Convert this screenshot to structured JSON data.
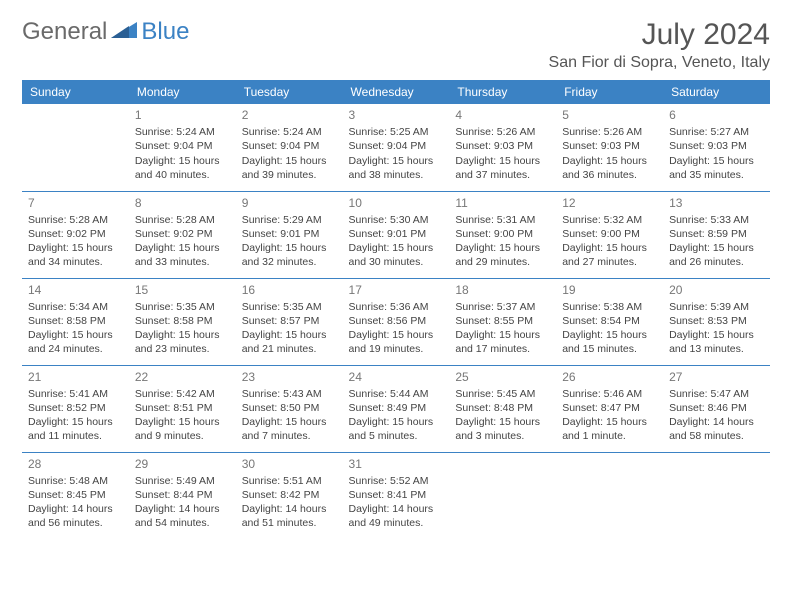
{
  "logo": {
    "part1": "General",
    "part2": "Blue"
  },
  "title": "July 2024",
  "location": "San Fior di Sopra, Veneto, Italy",
  "colors": {
    "header_bg": "#3b82c4",
    "header_text": "#ffffff",
    "border": "#3b82c4",
    "body_text": "#444444",
    "daynum": "#777777",
    "title_color": "#555555",
    "logo_gray": "#6a6a6a",
    "logo_blue": "#3b82c4",
    "page_bg": "#ffffff"
  },
  "weekdays": [
    "Sunday",
    "Monday",
    "Tuesday",
    "Wednesday",
    "Thursday",
    "Friday",
    "Saturday"
  ],
  "weeks": [
    [
      null,
      {
        "n": "1",
        "sr": "Sunrise: 5:24 AM",
        "ss": "Sunset: 9:04 PM",
        "dl": "Daylight: 15 hours and 40 minutes."
      },
      {
        "n": "2",
        "sr": "Sunrise: 5:24 AM",
        "ss": "Sunset: 9:04 PM",
        "dl": "Daylight: 15 hours and 39 minutes."
      },
      {
        "n": "3",
        "sr": "Sunrise: 5:25 AM",
        "ss": "Sunset: 9:04 PM",
        "dl": "Daylight: 15 hours and 38 minutes."
      },
      {
        "n": "4",
        "sr": "Sunrise: 5:26 AM",
        "ss": "Sunset: 9:03 PM",
        "dl": "Daylight: 15 hours and 37 minutes."
      },
      {
        "n": "5",
        "sr": "Sunrise: 5:26 AM",
        "ss": "Sunset: 9:03 PM",
        "dl": "Daylight: 15 hours and 36 minutes."
      },
      {
        "n": "6",
        "sr": "Sunrise: 5:27 AM",
        "ss": "Sunset: 9:03 PM",
        "dl": "Daylight: 15 hours and 35 minutes."
      }
    ],
    [
      {
        "n": "7",
        "sr": "Sunrise: 5:28 AM",
        "ss": "Sunset: 9:02 PM",
        "dl": "Daylight: 15 hours and 34 minutes."
      },
      {
        "n": "8",
        "sr": "Sunrise: 5:28 AM",
        "ss": "Sunset: 9:02 PM",
        "dl": "Daylight: 15 hours and 33 minutes."
      },
      {
        "n": "9",
        "sr": "Sunrise: 5:29 AM",
        "ss": "Sunset: 9:01 PM",
        "dl": "Daylight: 15 hours and 32 minutes."
      },
      {
        "n": "10",
        "sr": "Sunrise: 5:30 AM",
        "ss": "Sunset: 9:01 PM",
        "dl": "Daylight: 15 hours and 30 minutes."
      },
      {
        "n": "11",
        "sr": "Sunrise: 5:31 AM",
        "ss": "Sunset: 9:00 PM",
        "dl": "Daylight: 15 hours and 29 minutes."
      },
      {
        "n": "12",
        "sr": "Sunrise: 5:32 AM",
        "ss": "Sunset: 9:00 PM",
        "dl": "Daylight: 15 hours and 27 minutes."
      },
      {
        "n": "13",
        "sr": "Sunrise: 5:33 AM",
        "ss": "Sunset: 8:59 PM",
        "dl": "Daylight: 15 hours and 26 minutes."
      }
    ],
    [
      {
        "n": "14",
        "sr": "Sunrise: 5:34 AM",
        "ss": "Sunset: 8:58 PM",
        "dl": "Daylight: 15 hours and 24 minutes."
      },
      {
        "n": "15",
        "sr": "Sunrise: 5:35 AM",
        "ss": "Sunset: 8:58 PM",
        "dl": "Daylight: 15 hours and 23 minutes."
      },
      {
        "n": "16",
        "sr": "Sunrise: 5:35 AM",
        "ss": "Sunset: 8:57 PM",
        "dl": "Daylight: 15 hours and 21 minutes."
      },
      {
        "n": "17",
        "sr": "Sunrise: 5:36 AM",
        "ss": "Sunset: 8:56 PM",
        "dl": "Daylight: 15 hours and 19 minutes."
      },
      {
        "n": "18",
        "sr": "Sunrise: 5:37 AM",
        "ss": "Sunset: 8:55 PM",
        "dl": "Daylight: 15 hours and 17 minutes."
      },
      {
        "n": "19",
        "sr": "Sunrise: 5:38 AM",
        "ss": "Sunset: 8:54 PM",
        "dl": "Daylight: 15 hours and 15 minutes."
      },
      {
        "n": "20",
        "sr": "Sunrise: 5:39 AM",
        "ss": "Sunset: 8:53 PM",
        "dl": "Daylight: 15 hours and 13 minutes."
      }
    ],
    [
      {
        "n": "21",
        "sr": "Sunrise: 5:41 AM",
        "ss": "Sunset: 8:52 PM",
        "dl": "Daylight: 15 hours and 11 minutes."
      },
      {
        "n": "22",
        "sr": "Sunrise: 5:42 AM",
        "ss": "Sunset: 8:51 PM",
        "dl": "Daylight: 15 hours and 9 minutes."
      },
      {
        "n": "23",
        "sr": "Sunrise: 5:43 AM",
        "ss": "Sunset: 8:50 PM",
        "dl": "Daylight: 15 hours and 7 minutes."
      },
      {
        "n": "24",
        "sr": "Sunrise: 5:44 AM",
        "ss": "Sunset: 8:49 PM",
        "dl": "Daylight: 15 hours and 5 minutes."
      },
      {
        "n": "25",
        "sr": "Sunrise: 5:45 AM",
        "ss": "Sunset: 8:48 PM",
        "dl": "Daylight: 15 hours and 3 minutes."
      },
      {
        "n": "26",
        "sr": "Sunrise: 5:46 AM",
        "ss": "Sunset: 8:47 PM",
        "dl": "Daylight: 15 hours and 1 minute."
      },
      {
        "n": "27",
        "sr": "Sunrise: 5:47 AM",
        "ss": "Sunset: 8:46 PM",
        "dl": "Daylight: 14 hours and 58 minutes."
      }
    ],
    [
      {
        "n": "28",
        "sr": "Sunrise: 5:48 AM",
        "ss": "Sunset: 8:45 PM",
        "dl": "Daylight: 14 hours and 56 minutes."
      },
      {
        "n": "29",
        "sr": "Sunrise: 5:49 AM",
        "ss": "Sunset: 8:44 PM",
        "dl": "Daylight: 14 hours and 54 minutes."
      },
      {
        "n": "30",
        "sr": "Sunrise: 5:51 AM",
        "ss": "Sunset: 8:42 PM",
        "dl": "Daylight: 14 hours and 51 minutes."
      },
      {
        "n": "31",
        "sr": "Sunrise: 5:52 AM",
        "ss": "Sunset: 8:41 PM",
        "dl": "Daylight: 14 hours and 49 minutes."
      },
      null,
      null,
      null
    ]
  ]
}
